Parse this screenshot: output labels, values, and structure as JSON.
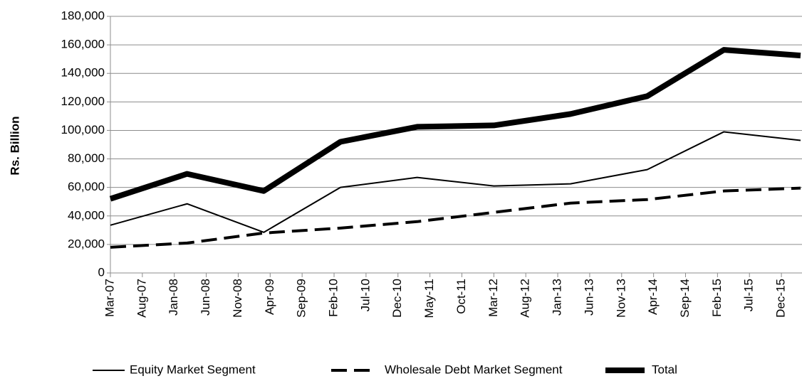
{
  "chart_data": {
    "type": "line",
    "ylabel": "Rs. Billion",
    "x": [
      "Mar-07",
      "Mar-08",
      "Mar-09",
      "Mar-10",
      "Mar-11",
      "Mar-12",
      "Mar-13",
      "Mar-14",
      "Mar-15",
      "Mar-16"
    ],
    "series": [
      {
        "name": "Equity Market Segment",
        "color": "#000000",
        "values": [
          33500,
          48500,
          28500,
          60000,
          67000,
          61000,
          62500,
          72500,
          99000,
          93000
        ]
      },
      {
        "name": "Wholesale Debt Market Segment",
        "color": "#000000",
        "values": [
          18000,
          21000,
          28000,
          31500,
          36000,
          42500,
          49000,
          51500,
          57500,
          59500
        ]
      },
      {
        "name": "Total",
        "color": "#000000",
        "values": [
          52000,
          69500,
          57500,
          92000,
          102500,
          103500,
          111500,
          124000,
          156500,
          152500
        ]
      }
    ],
    "xlim": [
      "Mar-07",
      "Mar-16"
    ],
    "xticks": [
      "Mar-07",
      "Aug-07",
      "Jan-08",
      "Jun-08",
      "Nov-08",
      "Apr-09",
      "Sep-09",
      "Feb-10",
      "Jul-10",
      "Dec-10",
      "May-11",
      "Oct-11",
      "Mar-12",
      "Aug-12",
      "Jan-13",
      "Jun-13",
      "Nov-13",
      "Apr-14",
      "Sep-14",
      "Feb-15",
      "Jul-15",
      "Dec-15"
    ],
    "ylim": [
      0,
      180000
    ],
    "yticks": [
      0,
      {
        "value": 20000,
        "label": "20,000"
      },
      {
        "value": 40000,
        "label": "40,000"
      },
      {
        "value": 60000,
        "label": "60,000"
      },
      {
        "value": 80000,
        "label": "80,000"
      },
      {
        "value": 100000,
        "label": "100,000"
      },
      {
        "value": 120000,
        "label": "120,000"
      },
      {
        "value": 140000,
        "label": "140,000"
      },
      {
        "value": 160000,
        "label": "160,000"
      },
      {
        "value": 180000,
        "label": "180,000"
      }
    ],
    "grid": true
  }
}
